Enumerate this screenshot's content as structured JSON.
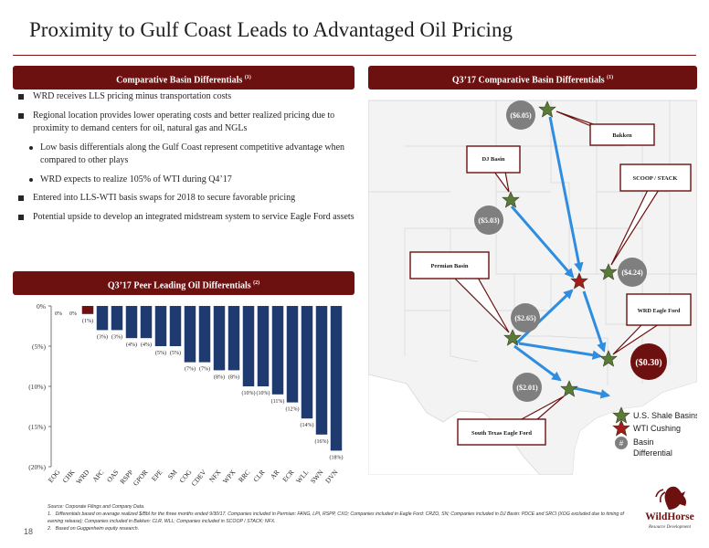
{
  "slide": {
    "title": "Proximity to Gulf Coast Leads to Advantaged Oil Pricing",
    "page_number": "18"
  },
  "left_panel": {
    "banner": "Comparative Basin Differentials",
    "banner_note": "(1)",
    "bullets": [
      "WRD receives LLS pricing minus transportation costs",
      "Regional location provides lower operating costs and better realized pricing due to proximity to demand centers for oil, natural gas and NGLs",
      "Low basis differentials along the Gulf Coast represent competitive advantage when compared to other plays",
      "WRD expects to realize 105% of WTI during Q4’17",
      "Entered into LLS-WTI basis swaps for 2018 to secure favorable pricing",
      "Potential upside to develop an integrated midstream system to service Eagle Ford assets"
    ]
  },
  "peer_panel": {
    "banner": "Q3’17 Peer Leading Oil Differentials",
    "banner_note": "(2)"
  },
  "chart_data": {
    "type": "bar",
    "categories": [
      "EOG",
      "CHK",
      "WRD",
      "APC",
      "OAS",
      "RSPP",
      "GPOR",
      "EPE",
      "SM",
      "COG",
      "CDEV",
      "NFX",
      "WPX",
      "RRC",
      "CLR",
      "AR",
      "ECR",
      "WLL",
      "SWN",
      "DVN"
    ],
    "values": [
      0,
      0,
      -1,
      -3,
      -3,
      -4,
      -4,
      -5,
      -5,
      -7,
      -7,
      -8,
      -8,
      -10,
      -10,
      -11,
      -12,
      -14,
      -16,
      -18
    ],
    "data_labels": [
      "0%",
      "0%",
      "(1%)",
      "(3%)",
      "(3%)",
      "(4%)",
      "(4%)",
      "(5%)",
      "(5%)",
      "(7%)",
      "(7%)",
      "(8%)",
      "(8%)",
      "(10%)",
      "(10%)",
      "(11%)",
      "(12%)",
      "(14%)",
      "(16%)",
      "(18%)"
    ],
    "highlight_category": "WRD",
    "colors": {
      "default": "#1f3a6e",
      "highlight": "#6d1010"
    },
    "yticks": [
      0,
      -5,
      -10,
      -15,
      -20
    ],
    "ytick_labels": [
      "0%",
      "(5%)",
      "(10%)",
      "(15%)",
      "(20%)"
    ],
    "ylim": [
      -20,
      0
    ],
    "grid": false,
    "title": "",
    "xlabel": "",
    "ylabel": ""
  },
  "map_panel": {
    "banner": "Q3’17 Comparative Basin Differentials",
    "banner_note": "(1)",
    "callouts": {
      "bakken": "Bakken",
      "dj": "DJ Basin",
      "scoop": "SCOOP / STACK",
      "permian": "Permian Basin",
      "wrd_eagle_ford": "WRD Eagle Ford",
      "south_texas": "South Texas Eagle Ford"
    },
    "differentials": {
      "bakken": "($6.05)",
      "dj": "($5.03)",
      "scoop": "($4.24)",
      "permian": "($2.65)",
      "south_texas": "($2.01)",
      "wrd": "($0.30)"
    },
    "legend": {
      "shale": "U.S. Shale Basins",
      "cushing": "WTI Cushing",
      "differential": "Basin Differential",
      "differential_symbol": "#"
    },
    "colors": {
      "star_green": "#5b7a3a",
      "star_red": "#a51b1b",
      "arrow": "#2e8de0",
      "circle": "#7f7f7f",
      "wrd_circle": "#6d1010"
    }
  },
  "footnotes": {
    "source": "Source: Corporate Filings and Company Data.",
    "note1": "Differentials based on average realized $/Bbl for the three months ended 9/30/17. Companies included in Permian: FANG, LPI, RSPP, CXO; Companies included in Eagle Ford: CRZO, SN; Companies included in DJ Basin: PDCE and SRCI (XOG excluded due to timing of earning release); Companies included in Bakken: CLR, WLL; Companies included in SCOOP / STACK: NFX.",
    "note2": "Based on Guggenheim equity research."
  },
  "logo": {
    "name": "WildHorse",
    "tagline": "Resource Development"
  }
}
